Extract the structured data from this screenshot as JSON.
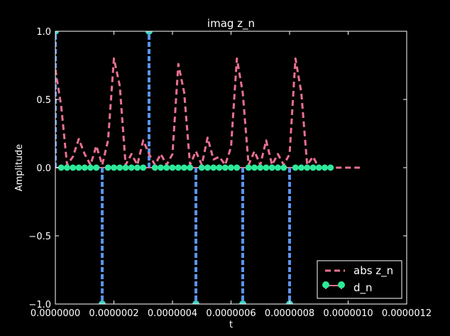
{
  "chart_data": {
    "type": "line",
    "title": "imag z_n",
    "xlabel": "t",
    "ylabel": "Amplitude",
    "xlim": [
      0,
      1.2e-06
    ],
    "ylim": [
      -1.0,
      1.0
    ],
    "xticks": [
      "0.0000000",
      "0.0000002",
      "0.0000004",
      "0.0000006",
      "0.0000008",
      "0.0000010",
      "0.0000012"
    ],
    "xtick_values": [
      0,
      2e-07,
      4e-07,
      6e-07,
      8e-07,
      1e-06,
      1.2e-06
    ],
    "yticks": [
      "−1.0",
      "−0.5",
      "0.0",
      "0.5",
      "1.0"
    ],
    "ytick_values": [
      -1.0,
      -0.5,
      0.0,
      0.5,
      1.0
    ],
    "grid": false,
    "legend": {
      "placement": "lower-right",
      "entries": [
        "abs z_n",
        "d_n"
      ]
    },
    "series": [
      {
        "name": "abs z_n",
        "style": "dashed-line",
        "color": "#e8708f",
        "x": [
          0,
          2e-08,
          4e-08,
          6e-08,
          8e-08,
          1e-07,
          1.2e-07,
          1.4e-07,
          1.6e-07,
          1.8e-07,
          2e-07,
          2.2e-07,
          2.4e-07,
          2.6e-07,
          2.8e-07,
          3e-07,
          3.2e-07,
          3.4e-07,
          3.6e-07,
          3.8e-07,
          4e-07,
          4.2e-07,
          4.4e-07,
          4.6e-07,
          4.8e-07,
          5e-07,
          5.2e-07,
          5.4e-07,
          5.6e-07,
          5.8e-07,
          6e-07,
          6.2e-07,
          6.4e-07,
          6.6e-07,
          6.8e-07,
          7e-07,
          7.2e-07,
          7.4e-07,
          7.6e-07,
          7.8e-07,
          8e-07,
          8.2e-07,
          8.4e-07,
          8.6e-07,
          8.8e-07,
          9e-07,
          9.2e-07,
          9.4e-07,
          9.6e-07,
          9.8e-07,
          1e-06,
          1.02e-06,
          1.04e-06
        ],
        "values": [
          0.72,
          0.45,
          0.02,
          0.08,
          0.21,
          0.1,
          0.02,
          0.16,
          0.02,
          0.2,
          0.8,
          0.6,
          0.02,
          0.1,
          0.02,
          0.2,
          0.1,
          0.02,
          0.1,
          0.02,
          0.1,
          0.76,
          0.55,
          0.02,
          0.12,
          0.02,
          0.22,
          0.06,
          0.08,
          0.02,
          0.15,
          0.8,
          0.55,
          0.02,
          0.12,
          0.02,
          0.2,
          0.02,
          0.1,
          0.02,
          0.1,
          0.8,
          0.55,
          0.02,
          0.08,
          0.0,
          0.0,
          0.0,
          0.0,
          0.0,
          0.0,
          0.0,
          0.0
        ]
      },
      {
        "name": "d_n",
        "style": "stem",
        "marker_color": "#2ee89a",
        "stem_color": "#5b93ee",
        "x": [
          0,
          1.6e-07,
          3.2e-07,
          4.8e-07,
          6.4e-07,
          8e-07
        ],
        "values": [
          1.0,
          -1.0,
          1.0,
          -1.0,
          -1.0,
          -1.0
        ],
        "zero_marker_step": 2e-08,
        "zero_marker_end": 9.4e-07
      }
    ]
  }
}
